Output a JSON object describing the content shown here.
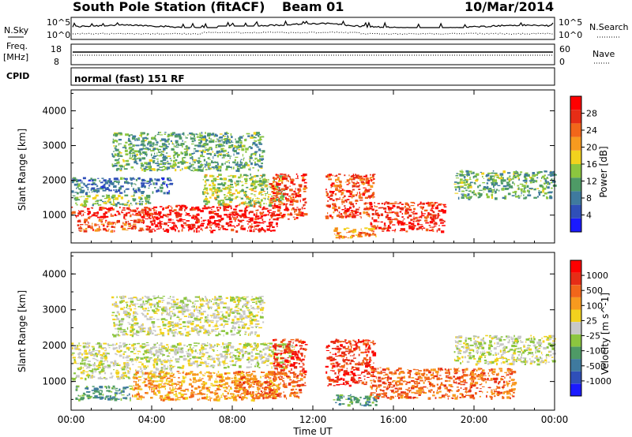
{
  "header": {
    "title": "South Pole Station (fitACF)",
    "beam": "Beam 01",
    "date": "10/Mar/2014"
  },
  "strips": {
    "nsky_label": "N.Sky",
    "nsky_scale_hi": "10^5",
    "nsky_scale_lo": "10^0",
    "nsearch_label": "N.Search",
    "freq_label_1": "Freq.",
    "freq_label_2": "[MHz]",
    "freq_hi": "18",
    "freq_lo": "8",
    "nave_label": "Nave",
    "nave_hi": "60",
    "nave_lo": "0",
    "cpid_label": "CPID",
    "cpid_value": "normal (fast) 151 RF"
  },
  "colors": {
    "power_scale": [
      "#1a1aff",
      "#2f4fb8",
      "#3f7a9e",
      "#4e9a66",
      "#8cc63f",
      "#f2d21e",
      "#f79a1f",
      "#f2661a",
      "#e62d16",
      "#ff0000"
    ],
    "velocity_scale": [
      "#1a1aff",
      "#2f4fb8",
      "#3f7a9e",
      "#4e9a66",
      "#8cc63f",
      "#c8c8c8",
      "#f2d21e",
      "#f79a1f",
      "#f2661a",
      "#e62d16",
      "#ff0000"
    ]
  },
  "chart_data": [
    {
      "type": "heatmap",
      "name": "power",
      "xlabel": "",
      "ylabel": "Slant Range [km]",
      "colorbar_label": "Power [dB]",
      "colorbar_ticks": [
        "4",
        "8",
        "12",
        "16",
        "20",
        "24",
        "28"
      ],
      "colorbar_range": [
        0,
        32
      ],
      "x_ticks": [],
      "y_ticks": [
        "1000",
        "2000",
        "3000",
        "4000"
      ],
      "xlim_hours": [
        0,
        24
      ],
      "ylim_km": [
        200,
        4600
      ],
      "bands": [
        {
          "t0": 0,
          "t1": 4.2,
          "r0": 950,
          "r1": 1250,
          "v": 29
        },
        {
          "t0": 0.3,
          "t1": 3.5,
          "r0": 550,
          "r1": 900,
          "v": 25
        },
        {
          "t0": 3.5,
          "t1": 10.2,
          "r0": 550,
          "r1": 1300,
          "v": 30
        },
        {
          "t0": 0,
          "t1": 3.8,
          "r0": 1300,
          "r1": 1600,
          "v": 14
        },
        {
          "t0": 0,
          "t1": 5.0,
          "r0": 1650,
          "r1": 2100,
          "v": 8
        },
        {
          "t0": 6.5,
          "t1": 10.5,
          "r0": 1300,
          "r1": 2200,
          "v": 15
        },
        {
          "t0": 9.8,
          "t1": 11.6,
          "r0": 900,
          "r1": 2200,
          "v": 27
        },
        {
          "t0": 12.6,
          "t1": 15.0,
          "r0": 950,
          "r1": 2200,
          "v": 26
        },
        {
          "t0": 13.0,
          "t1": 15.2,
          "r0": 350,
          "r1": 650,
          "v": 22
        },
        {
          "t0": 14.8,
          "t1": 18.5,
          "r0": 550,
          "r1": 1400,
          "v": 28
        },
        {
          "t0": 19.0,
          "t1": 24.0,
          "r0": 1500,
          "r1": 2300,
          "v": 12
        },
        {
          "t0": 2.0,
          "t1": 9.5,
          "r0": 2300,
          "r1": 3400,
          "v": 12
        }
      ]
    },
    {
      "type": "heatmap",
      "name": "velocity",
      "xlabel": "Time UT",
      "ylabel": "Slant Range [km]",
      "colorbar_label": "Velocity [m s^-1]",
      "colorbar_ticks": [
        "1000",
        "500",
        "100",
        "25",
        "-25",
        "-100",
        "-500",
        "-1000"
      ],
      "x_ticks": [
        "00:00",
        "04:00",
        "08:00",
        "12:00",
        "16:00",
        "20:00",
        "00:00"
      ],
      "y_ticks": [
        "1000",
        "2000",
        "3000",
        "4000"
      ],
      "xlim_hours": [
        0,
        24
      ],
      "ylim_km": [
        200,
        4600
      ],
      "bands": [
        {
          "t0": 0,
          "t1": 5.0,
          "r0": 1100,
          "r1": 1400,
          "c": 5
        },
        {
          "t0": 0,
          "t1": 11.0,
          "r0": 1400,
          "r1": 2100,
          "c": 5
        },
        {
          "t0": 0.2,
          "t1": 3.0,
          "r0": 500,
          "r1": 900,
          "c": 3
        },
        {
          "t0": 3.0,
          "t1": 10.2,
          "r0": 500,
          "r1": 1300,
          "c": 7
        },
        {
          "t0": 8.0,
          "t1": 11.6,
          "r0": 550,
          "r1": 1300,
          "c": 8
        },
        {
          "t0": 10.0,
          "t1": 11.6,
          "r0": 1300,
          "r1": 2200,
          "c": 9
        },
        {
          "t0": 12.6,
          "t1": 15.0,
          "r0": 900,
          "r1": 2200,
          "c": 9
        },
        {
          "t0": 13.0,
          "t1": 15.2,
          "r0": 350,
          "r1": 650,
          "c": 3
        },
        {
          "t0": 14.8,
          "t1": 22.0,
          "r0": 550,
          "r1": 1400,
          "c": 8
        },
        {
          "t0": 19.0,
          "t1": 24.0,
          "r0": 1500,
          "r1": 2300,
          "c": 5
        },
        {
          "t0": 2.0,
          "t1": 9.5,
          "r0": 2300,
          "r1": 3400,
          "c": 5
        }
      ]
    }
  ]
}
